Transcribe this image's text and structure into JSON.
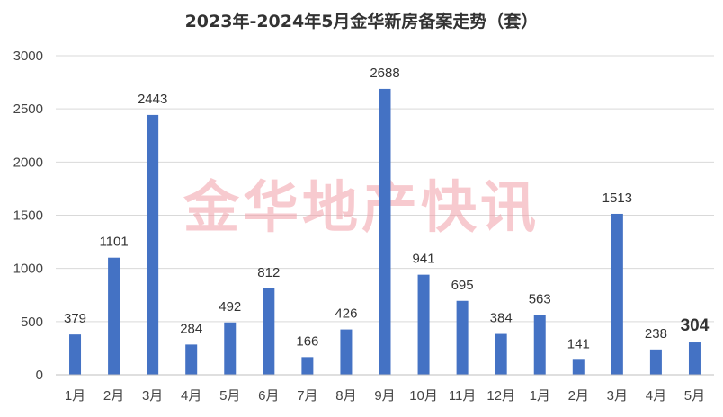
{
  "chart_data": {
    "type": "bar",
    "title": "2023年-2024年5月金华新房备案走势（套）",
    "categories": [
      "1月",
      "2月",
      "3月",
      "4月",
      "5月",
      "6月",
      "7月",
      "8月",
      "9月",
      "10月",
      "11月",
      "12月",
      "1月",
      "2月",
      "3月",
      "4月",
      "5月"
    ],
    "values": [
      379,
      1101,
      2443,
      284,
      492,
      812,
      166,
      426,
      2688,
      941,
      695,
      384,
      563,
      141,
      1513,
      238,
      304
    ],
    "ylim": [
      0,
      3000
    ],
    "yticks": [
      0,
      500,
      1000,
      1500,
      2000,
      2500,
      3000
    ],
    "grid": true,
    "bar_color": "#4472c4",
    "label_color": "#333333",
    "highlight_index": 16,
    "highlight_color": "#e00000",
    "xlabel": "",
    "ylabel": ""
  },
  "watermark": {
    "text": "金华地产快讯",
    "color": "#f2a0a8"
  }
}
